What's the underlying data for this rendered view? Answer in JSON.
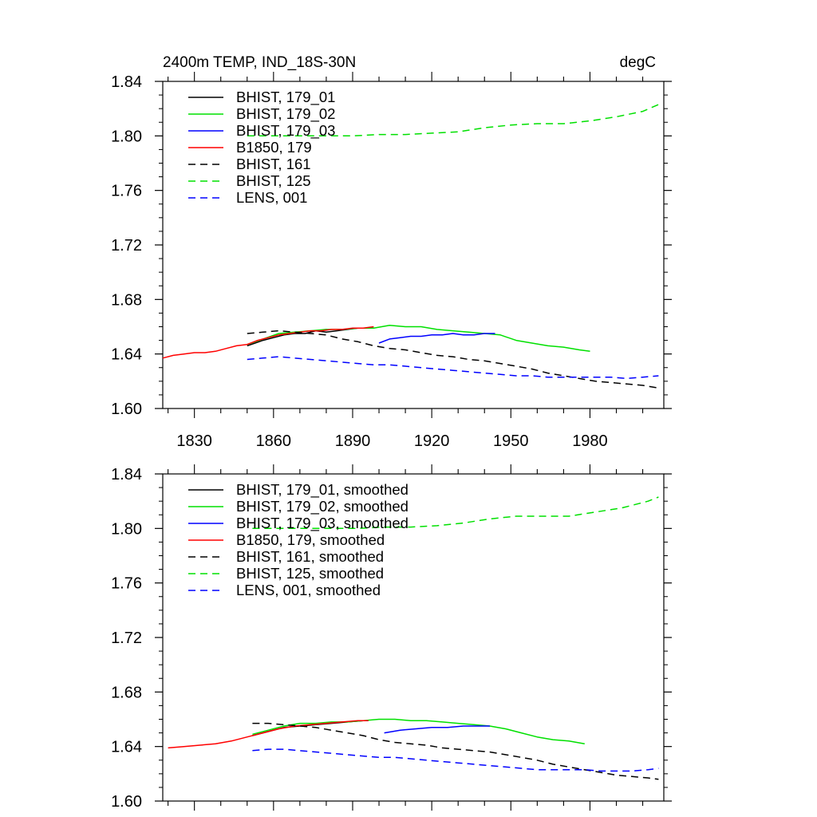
{
  "header": {
    "title": "2400m TEMP, IND_18S-30N",
    "units": "degC"
  },
  "chart_data": [
    {
      "type": "line",
      "title": "2400m TEMP, IND_18S-30N",
      "units_label": "degC",
      "xlim": [
        1818,
        2008
      ],
      "ylim": [
        1.6,
        1.84
      ],
      "xticks": [
        1830,
        1860,
        1890,
        1920,
        1950,
        1980
      ],
      "yticks": [
        "1.60",
        "1.64",
        "1.68",
        "1.72",
        "1.76",
        "1.80",
        "1.84"
      ],
      "xtick_labels_shown": true,
      "legend_position": "top-left",
      "series": [
        {
          "name": "BHIST, 179_01",
          "color": "#000000",
          "dash": "solid",
          "x": [
            1850,
            1853,
            1856,
            1860,
            1864,
            1868,
            1872,
            1876,
            1880,
            1884,
            1888,
            1892,
            1896
          ],
          "y": [
            1.646,
            1.648,
            1.65,
            1.652,
            1.654,
            1.655,
            1.655,
            1.657,
            1.656,
            1.657,
            1.658,
            1.659,
            1.659
          ]
        },
        {
          "name": "BHIST, 179_02",
          "color": "#00e000",
          "dash": "solid",
          "x": [
            1850,
            1856,
            1862,
            1868,
            1874,
            1880,
            1886,
            1892,
            1898,
            1904,
            1910,
            1916,
            1922,
            1928,
            1934,
            1940,
            1946,
            1952,
            1958,
            1964,
            1970,
            1976,
            1980
          ],
          "y": [
            1.647,
            1.651,
            1.655,
            1.656,
            1.657,
            1.658,
            1.658,
            1.659,
            1.659,
            1.661,
            1.66,
            1.66,
            1.658,
            1.657,
            1.656,
            1.655,
            1.654,
            1.65,
            1.648,
            1.646,
            1.645,
            1.643,
            1.642
          ]
        },
        {
          "name": "BHIST, 179_03",
          "color": "#0000ff",
          "dash": "solid",
          "x": [
            1900,
            1904,
            1908,
            1912,
            1916,
            1920,
            1924,
            1928,
            1932,
            1936,
            1940,
            1944
          ],
          "y": [
            1.648,
            1.651,
            1.652,
            1.653,
            1.653,
            1.654,
            1.654,
            1.655,
            1.654,
            1.654,
            1.655,
            1.655
          ]
        },
        {
          "name": "B1850, 179",
          "color": "#ff0000",
          "dash": "solid",
          "x": [
            1818,
            1822,
            1826,
            1830,
            1834,
            1838,
            1842,
            1846,
            1850,
            1854,
            1858,
            1862,
            1866,
            1870,
            1874,
            1878,
            1882,
            1886,
            1890,
            1894,
            1898
          ],
          "y": [
            1.637,
            1.639,
            1.64,
            1.641,
            1.641,
            1.642,
            1.644,
            1.646,
            1.647,
            1.65,
            1.652,
            1.654,
            1.655,
            1.656,
            1.657,
            1.657,
            1.658,
            1.658,
            1.659,
            1.659,
            1.66
          ]
        },
        {
          "name": "BHIST, 161",
          "color": "#000000",
          "dash": "dashed",
          "x": [
            1850,
            1856,
            1862,
            1868,
            1874,
            1880,
            1886,
            1892,
            1898,
            1904,
            1910,
            1916,
            1922,
            1928,
            1934,
            1940,
            1946,
            1952,
            1958,
            1964,
            1970,
            1976,
            1982,
            1988,
            1994,
            2000,
            2006
          ],
          "y": [
            1.655,
            1.656,
            1.657,
            1.656,
            1.655,
            1.654,
            1.651,
            1.649,
            1.646,
            1.644,
            1.643,
            1.641,
            1.639,
            1.638,
            1.636,
            1.635,
            1.633,
            1.631,
            1.629,
            1.626,
            1.624,
            1.622,
            1.62,
            1.619,
            1.618,
            1.617,
            1.615
          ]
        },
        {
          "name": "BHIST, 125",
          "color": "#00e000",
          "dash": "dashed",
          "x": [
            1850,
            1860,
            1870,
            1880,
            1890,
            1900,
            1910,
            1920,
            1930,
            1940,
            1950,
            1960,
            1970,
            1980,
            1990,
            2000,
            2006
          ],
          "y": [
            1.8,
            1.8,
            1.8,
            1.8,
            1.8,
            1.801,
            1.801,
            1.802,
            1.803,
            1.806,
            1.808,
            1.809,
            1.809,
            1.811,
            1.814,
            1.818,
            1.823
          ]
        },
        {
          "name": "LENS, 001",
          "color": "#0000ff",
          "dash": "dashed",
          "x": [
            1850,
            1856,
            1862,
            1868,
            1874,
            1880,
            1886,
            1892,
            1898,
            1904,
            1910,
            1916,
            1922,
            1928,
            1934,
            1940,
            1946,
            1952,
            1958,
            1964,
            1970,
            1976,
            1982,
            1988,
            1994,
            2000,
            2006
          ],
          "y": [
            1.636,
            1.637,
            1.638,
            1.637,
            1.636,
            1.635,
            1.634,
            1.633,
            1.632,
            1.632,
            1.631,
            1.63,
            1.629,
            1.628,
            1.627,
            1.626,
            1.625,
            1.624,
            1.624,
            1.623,
            1.623,
            1.623,
            1.623,
            1.623,
            1.622,
            1.623,
            1.624
          ]
        }
      ]
    },
    {
      "type": "line",
      "xlim": [
        1818,
        2008
      ],
      "ylim": [
        1.6,
        1.84
      ],
      "xticks": [
        1830,
        1860,
        1890,
        1920,
        1950,
        1980
      ],
      "yticks": [
        "1.60",
        "1.64",
        "1.68",
        "1.72",
        "1.76",
        "1.80",
        "1.84"
      ],
      "xtick_labels_shown": false,
      "legend_position": "top-left",
      "series": [
        {
          "name": "BHIST, 179_01, smoothed",
          "color": "#000000",
          "dash": "solid",
          "x": [
            1852,
            1858,
            1864,
            1870,
            1876,
            1882,
            1888,
            1894
          ],
          "y": [
            1.648,
            1.651,
            1.654,
            1.655,
            1.656,
            1.657,
            1.658,
            1.659
          ]
        },
        {
          "name": "BHIST, 179_02, smoothed",
          "color": "#00e000",
          "dash": "solid",
          "x": [
            1852,
            1858,
            1864,
            1870,
            1876,
            1882,
            1888,
            1894,
            1900,
            1906,
            1912,
            1918,
            1924,
            1930,
            1936,
            1942,
            1948,
            1954,
            1960,
            1966,
            1972,
            1978
          ],
          "y": [
            1.649,
            1.652,
            1.655,
            1.657,
            1.657,
            1.658,
            1.658,
            1.659,
            1.66,
            1.66,
            1.659,
            1.659,
            1.658,
            1.657,
            1.656,
            1.655,
            1.653,
            1.65,
            1.647,
            1.645,
            1.644,
            1.642
          ]
        },
        {
          "name": "BHIST, 179_03, smoothed",
          "color": "#0000ff",
          "dash": "solid",
          "x": [
            1902,
            1908,
            1914,
            1920,
            1926,
            1932,
            1938,
            1942
          ],
          "y": [
            1.65,
            1.652,
            1.653,
            1.654,
            1.654,
            1.655,
            1.655,
            1.655
          ]
        },
        {
          "name": "B1850, 179, smoothed",
          "color": "#ff0000",
          "dash": "solid",
          "x": [
            1820,
            1826,
            1832,
            1838,
            1844,
            1850,
            1856,
            1862,
            1868,
            1874,
            1880,
            1886,
            1892,
            1896
          ],
          "y": [
            1.639,
            1.64,
            1.641,
            1.642,
            1.644,
            1.647,
            1.65,
            1.653,
            1.655,
            1.656,
            1.657,
            1.658,
            1.659,
            1.659
          ]
        },
        {
          "name": "BHIST, 161, smoothed",
          "color": "#000000",
          "dash": "dashed",
          "x": [
            1852,
            1858,
            1864,
            1870,
            1876,
            1882,
            1888,
            1894,
            1900,
            1906,
            1912,
            1918,
            1924,
            1930,
            1936,
            1942,
            1948,
            1954,
            1960,
            1966,
            1972,
            1978,
            1984,
            1990,
            1996,
            2002,
            2006
          ],
          "y": [
            1.657,
            1.657,
            1.656,
            1.655,
            1.654,
            1.652,
            1.65,
            1.648,
            1.645,
            1.643,
            1.642,
            1.641,
            1.639,
            1.638,
            1.637,
            1.636,
            1.634,
            1.632,
            1.63,
            1.627,
            1.625,
            1.623,
            1.621,
            1.619,
            1.618,
            1.617,
            1.616
          ]
        },
        {
          "name": "BHIST, 125, smoothed",
          "color": "#00e000",
          "dash": "dashed",
          "x": [
            1852,
            1862,
            1872,
            1882,
            1892,
            1902,
            1912,
            1922,
            1932,
            1942,
            1952,
            1962,
            1972,
            1982,
            1992,
            2002,
            2006
          ],
          "y": [
            1.8,
            1.8,
            1.8,
            1.8,
            1.8,
            1.801,
            1.801,
            1.802,
            1.804,
            1.807,
            1.809,
            1.809,
            1.809,
            1.812,
            1.815,
            1.82,
            1.823
          ]
        },
        {
          "name": "LENS, 001, smoothed",
          "color": "#0000ff",
          "dash": "dashed",
          "x": [
            1852,
            1858,
            1864,
            1870,
            1876,
            1882,
            1888,
            1894,
            1900,
            1906,
            1912,
            1918,
            1924,
            1930,
            1936,
            1942,
            1948,
            1954,
            1960,
            1966,
            1972,
            1978,
            1984,
            1990,
            1996,
            2002,
            2006
          ],
          "y": [
            1.637,
            1.638,
            1.638,
            1.637,
            1.636,
            1.635,
            1.634,
            1.633,
            1.632,
            1.632,
            1.631,
            1.63,
            1.629,
            1.628,
            1.627,
            1.626,
            1.625,
            1.624,
            1.623,
            1.623,
            1.623,
            1.623,
            1.622,
            1.622,
            1.622,
            1.623,
            1.624
          ]
        }
      ]
    }
  ]
}
